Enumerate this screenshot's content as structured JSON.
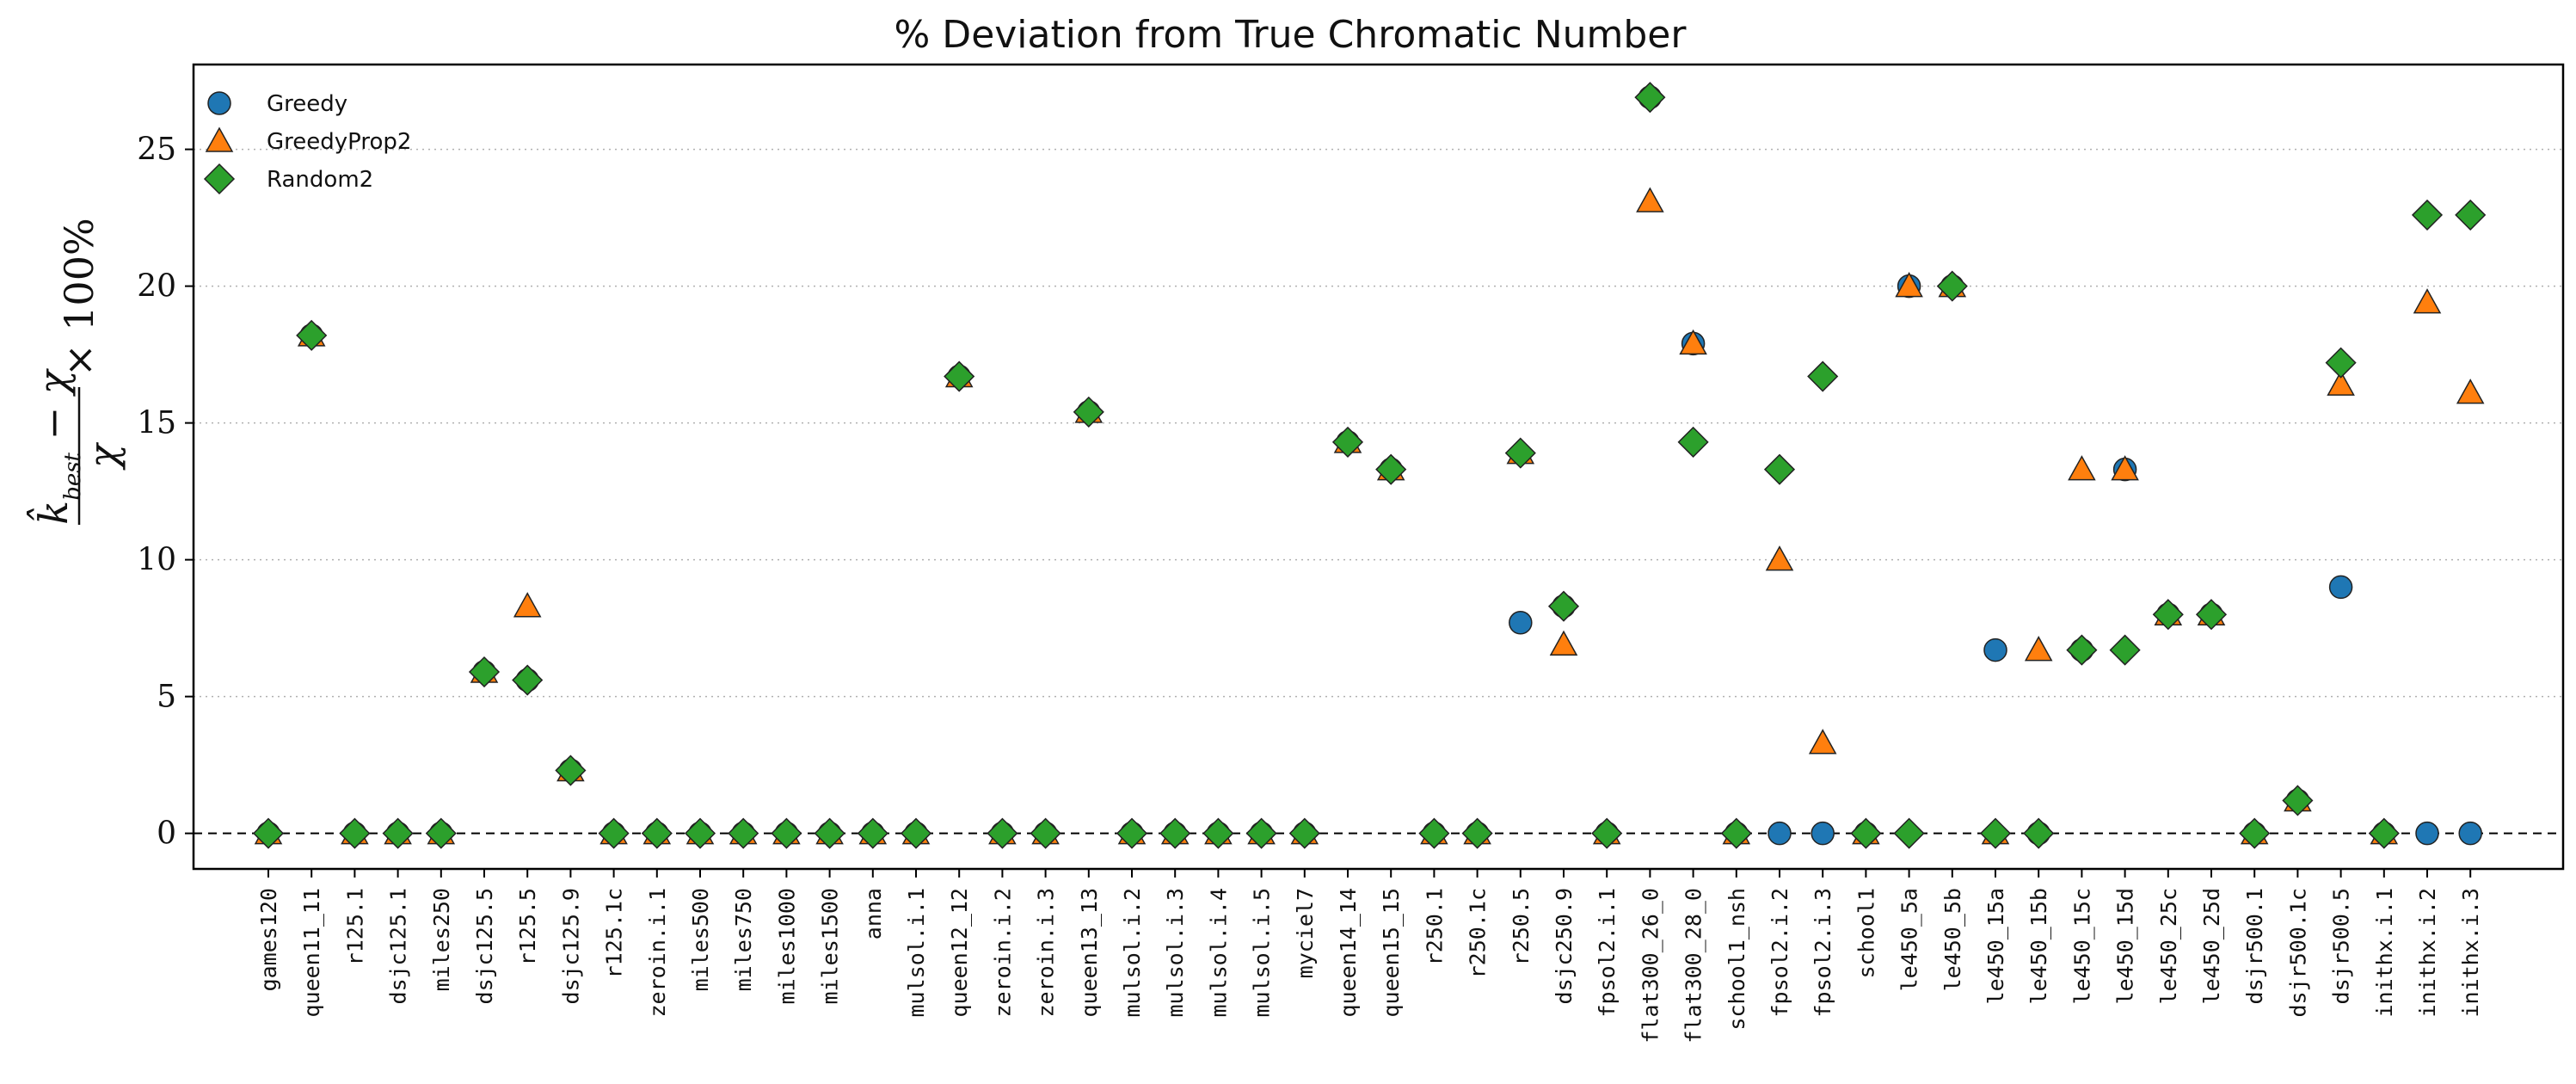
{
  "chart_data": {
    "type": "scatter",
    "title": "% Deviation from True Chromatic Number",
    "ylabel": "(k̂_best − χ) / χ × 100%",
    "xlabel": "",
    "ylim": [
      -1.3,
      28.1
    ],
    "yticks": [
      0,
      5,
      10,
      15,
      20,
      25
    ],
    "ytick_labels": [
      "0",
      "5",
      "10",
      "15",
      "20",
      "25"
    ],
    "grid": "horizontal dotted",
    "reference_line": 0,
    "legend_position": "top-left",
    "categories": [
      "games120",
      "queen11_11",
      "r125.1",
      "dsjc125.1",
      "miles250",
      "dsjc125.5",
      "r125.5",
      "dsjc125.9",
      "r125.1c",
      "zeroin.i.1",
      "miles500",
      "miles750",
      "miles1000",
      "miles1500",
      "anna",
      "mulsol.i.1",
      "queen12_12",
      "zeroin.i.2",
      "zeroin.i.3",
      "queen13_13",
      "mulsol.i.2",
      "mulsol.i.3",
      "mulsol.i.4",
      "mulsol.i.5",
      "myciel7",
      "queen14_14",
      "queen15_15",
      "r250.1",
      "r250.1c",
      "r250.5",
      "dsjc250.9",
      "fpsol2.i.1",
      "flat300_26_0",
      "flat300_28_0",
      "school1_nsh",
      "fpsol2.i.2",
      "fpsol2.i.3",
      "school1",
      "le450_5a",
      "le450_5b",
      "le450_15a",
      "le450_15b",
      "le450_15c",
      "le450_15d",
      "le450_25c",
      "le450_25d",
      "dsjr500.1",
      "dsjr500.1c",
      "dsjr500.5",
      "inithx.i.1",
      "inithx.i.2",
      "inithx.i.3"
    ],
    "series": [
      {
        "name": "Greedy",
        "marker": "circle",
        "color": "#1f77b4",
        "values": [
          0,
          18.2,
          0,
          0,
          0,
          5.9,
          5.6,
          2.3,
          0,
          0,
          0,
          0,
          0,
          0,
          0,
          0,
          16.7,
          0,
          0,
          15.4,
          0,
          0,
          0,
          0,
          0,
          14.3,
          13.3,
          0,
          0,
          7.7,
          8.3,
          0,
          26.9,
          17.9,
          0,
          0,
          0,
          0,
          20,
          20,
          6.7,
          0,
          6.7,
          13.3,
          8,
          8,
          0,
          1.2,
          9.0,
          0,
          0,
          0
        ]
      },
      {
        "name": "GreedyProp2",
        "marker": "triangle",
        "color": "#ff7f0e",
        "values": [
          0,
          18.2,
          0,
          0,
          0,
          5.9,
          8.3,
          2.3,
          0,
          0,
          0,
          0,
          0,
          0,
          0,
          0,
          16.7,
          0,
          0,
          15.4,
          0,
          0,
          0,
          0,
          0,
          14.3,
          13.3,
          0,
          0,
          13.9,
          6.9,
          0,
          23.1,
          17.9,
          0,
          10,
          3.3,
          0,
          20,
          20,
          0,
          6.7,
          13.3,
          13.3,
          8,
          8,
          0,
          1.2,
          16.4,
          0,
          19.4,
          16.1
        ]
      },
      {
        "name": "Random2",
        "marker": "diamond",
        "color": "#2ca02c",
        "values": [
          0,
          18.2,
          0,
          0,
          0,
          5.9,
          5.6,
          2.3,
          0,
          0,
          0,
          0,
          0,
          0,
          0,
          0,
          16.7,
          0,
          0,
          15.4,
          0,
          0,
          0,
          0,
          0,
          14.3,
          13.3,
          0,
          0,
          13.9,
          8.3,
          0,
          26.9,
          14.3,
          0,
          13.3,
          16.7,
          0,
          0,
          20,
          0,
          0,
          6.7,
          6.7,
          8,
          8,
          0,
          1.2,
          17.2,
          0,
          22.6,
          22.6
        ]
      }
    ]
  }
}
